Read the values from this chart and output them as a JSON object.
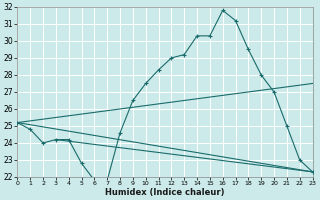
{
  "xlabel": "Humidex (Indice chaleur)",
  "background_color": "#cceaea",
  "grid_color": "#b0d8d8",
  "line_color": "#1a6b6b",
  "x_range": [
    0,
    23
  ],
  "y_range": [
    22,
    32
  ],
  "series": [
    {
      "x": [
        0,
        1,
        2,
        3,
        4,
        5,
        6,
        7,
        8,
        9,
        10,
        11,
        12,
        13,
        14,
        15,
        16,
        17,
        18,
        19,
        20,
        21,
        22,
        23
      ],
      "y": [
        25.2,
        24.8,
        24.0,
        24.2,
        24.2,
        22.8,
        21.8,
        21.8,
        24.6,
        26.5,
        27.5,
        28.3,
        29.0,
        29.2,
        30.3,
        30.3,
        31.8,
        31.2,
        29.5,
        28.0,
        27.0,
        25.0,
        23.0,
        22.3
      ]
    },
    {
      "x": [
        0,
        23
      ],
      "y": [
        25.2,
        27.5
      ]
    },
    {
      "x": [
        0,
        23
      ],
      "y": [
        25.2,
        22.3
      ]
    },
    {
      "x": [
        3,
        23
      ],
      "y": [
        24.2,
        22.3
      ]
    }
  ]
}
